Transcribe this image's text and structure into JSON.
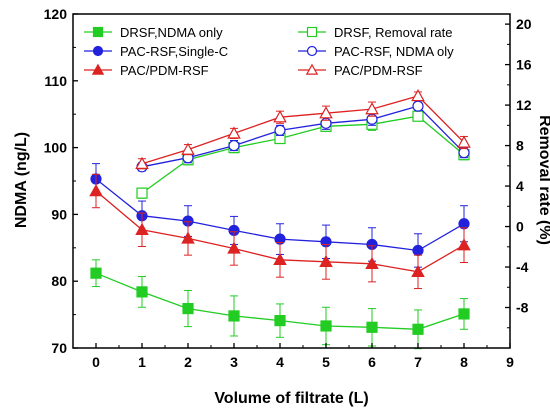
{
  "chart_data": {
    "type": "line",
    "xlabel": "Volume of filtrate (L)",
    "ylabel_left": "NDMA (ng/L)",
    "ylabel_right": "Removal rate (%)",
    "xlim": [
      -0.5,
      9
    ],
    "x_ticks": [
      0,
      1,
      2,
      3,
      4,
      5,
      6,
      7,
      8,
      9
    ],
    "ylim_left": [
      70,
      120
    ],
    "y_ticks_left": [
      70,
      80,
      90,
      100,
      110,
      120
    ],
    "ylim_right": [
      -12,
      21
    ],
    "y_ticks_right": [
      -8,
      -4,
      0,
      4,
      8,
      12,
      16,
      20
    ],
    "legend_left_position": "top-left",
    "legend_right_position": "top-right",
    "grid": false,
    "series": [
      {
        "name": "DRSF,NDMA only",
        "axis": "left",
        "marker": "square",
        "filled": true,
        "color": "#22cc22",
        "x": [
          0,
          1,
          2,
          3,
          4,
          5,
          6,
          7,
          8
        ],
        "y": [
          81.2,
          78.4,
          75.9,
          74.8,
          74.1,
          73.3,
          73.1,
          72.8,
          75.1
        ],
        "err": [
          2.0,
          2.3,
          2.7,
          3.0,
          2.5,
          2.8,
          2.8,
          2.9,
          2.3
        ]
      },
      {
        "name": "PAC-RSF,Single-C",
        "axis": "left",
        "marker": "circle",
        "filled": true,
        "color": "#2222dd",
        "x": [
          0,
          1,
          2,
          3,
          4,
          5,
          6,
          7,
          8
        ],
        "y": [
          95.3,
          89.8,
          89.0,
          87.6,
          86.3,
          85.9,
          85.5,
          84.6,
          88.6
        ],
        "err": [
          2.3,
          2.2,
          2.3,
          2.1,
          2.3,
          2.5,
          2.5,
          2.5,
          2.7
        ]
      },
      {
        "name": "PAC/PDM-RSF",
        "axis": "left",
        "marker": "triangle",
        "filled": true,
        "color": "#dd2222",
        "x": [
          0,
          1,
          2,
          3,
          4,
          5,
          6,
          7,
          8
        ],
        "y": [
          93.5,
          87.7,
          86.4,
          84.9,
          83.2,
          82.9,
          82.6,
          81.4,
          85.4
        ],
        "err": [
          2.5,
          2.5,
          2.5,
          2.5,
          2.6,
          2.6,
          2.7,
          2.5,
          2.6
        ]
      },
      {
        "name": "DRSF, Removal rate",
        "axis": "right",
        "marker": "square",
        "filled": false,
        "color": "#22cc22",
        "x": [
          1,
          2,
          3,
          4,
          5,
          6,
          7,
          8
        ],
        "y": [
          3.3,
          6.6,
          7.8,
          8.7,
          9.9,
          10.1,
          10.9,
          7.1
        ],
        "err": [
          0.5,
          0.5,
          0.5,
          0.5,
          0.5,
          0.6,
          0.4,
          0.5
        ]
      },
      {
        "name": "PAC-RSF, NDMA oly",
        "axis": "right",
        "marker": "circle",
        "filled": false,
        "color": "#2222dd",
        "x": [
          1,
          2,
          3,
          4,
          5,
          6,
          7,
          8
        ],
        "y": [
          5.9,
          6.8,
          8.0,
          9.5,
          10.2,
          10.6,
          11.9,
          7.3
        ],
        "err": [
          0.4,
          0.5,
          0.5,
          0.5,
          0.6,
          0.6,
          0.4,
          0.5
        ]
      },
      {
        "name": "PAC/PDM-RSF",
        "axis": "right",
        "marker": "triangle",
        "filled": false,
        "color": "#dd2222",
        "x": [
          1,
          2,
          3,
          4,
          5,
          6,
          7,
          8
        ],
        "y": [
          6.2,
          7.6,
          9.2,
          10.8,
          11.2,
          11.6,
          12.9,
          8.3
        ],
        "err": [
          0.5,
          0.5,
          0.5,
          0.6,
          0.7,
          0.7,
          0.4,
          0.6
        ]
      }
    ]
  }
}
